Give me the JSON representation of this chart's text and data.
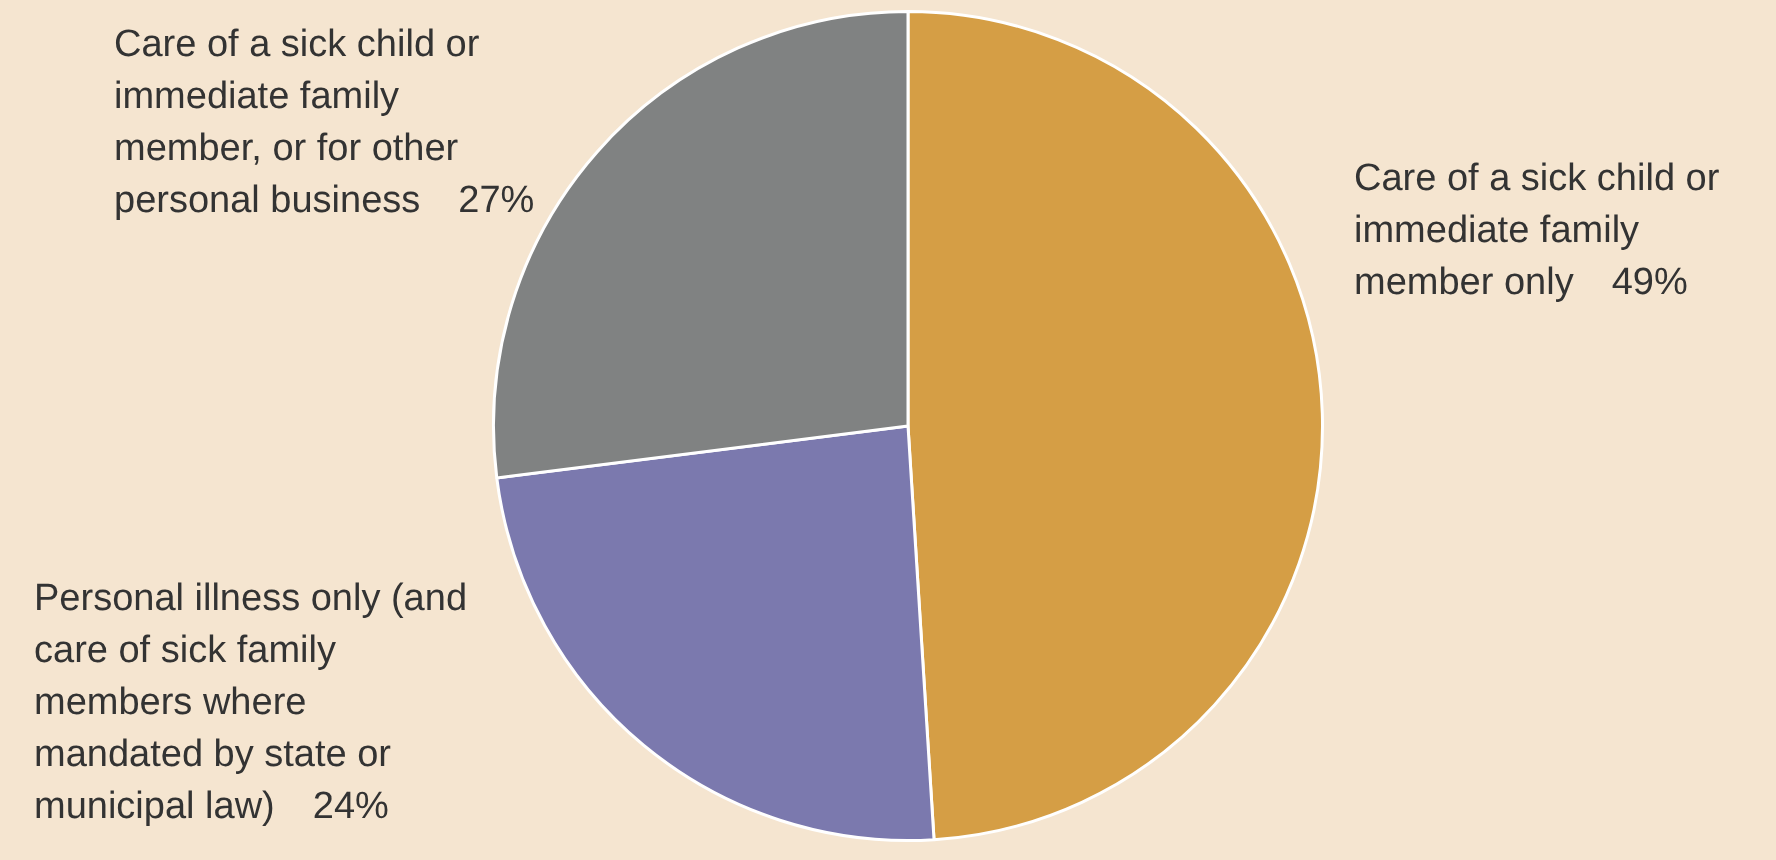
{
  "chart_data": {
    "type": "pie",
    "categories": [
      "Care of a sick child or immediate family member only",
      "Personal illness only (and care of sick family members where mandated by state or municipal law)",
      "Care of a sick child or immediate family member, or for other personal business"
    ],
    "values": [
      49,
      24,
      27
    ],
    "value_labels": [
      "49%",
      "24%",
      "27%"
    ],
    "colors": [
      "#d59e45",
      "#7b79ae",
      "#808282"
    ],
    "legend": false
  }
}
